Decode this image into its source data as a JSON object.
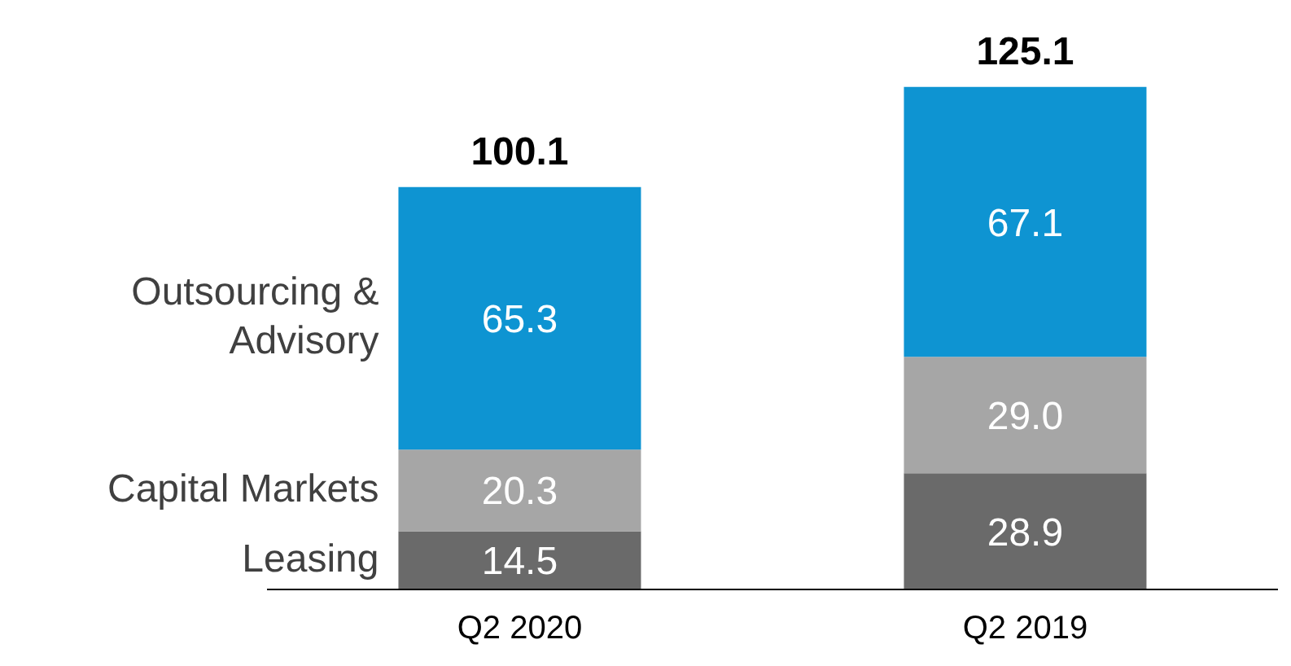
{
  "chart_data": {
    "type": "bar",
    "stacked": true,
    "categories": [
      "Q2 2020",
      "Q2 2019"
    ],
    "series": [
      {
        "name": "Leasing",
        "color": "#6a6a6a",
        "values": [
          14.5,
          28.9
        ],
        "value_labels": [
          "14.5",
          "28.9"
        ]
      },
      {
        "name": "Capital Markets",
        "color": "#a6a6a6",
        "values": [
          20.3,
          29.0
        ],
        "value_labels": [
          "20.3",
          "29.0"
        ]
      },
      {
        "name": "Outsourcing & Advisory",
        "color": "#0e94d2",
        "values": [
          65.3,
          67.1
        ],
        "value_labels": [
          "65.3",
          "67.1"
        ]
      }
    ],
    "totals": [
      "100.1",
      "125.1"
    ],
    "legend": "left"
  }
}
